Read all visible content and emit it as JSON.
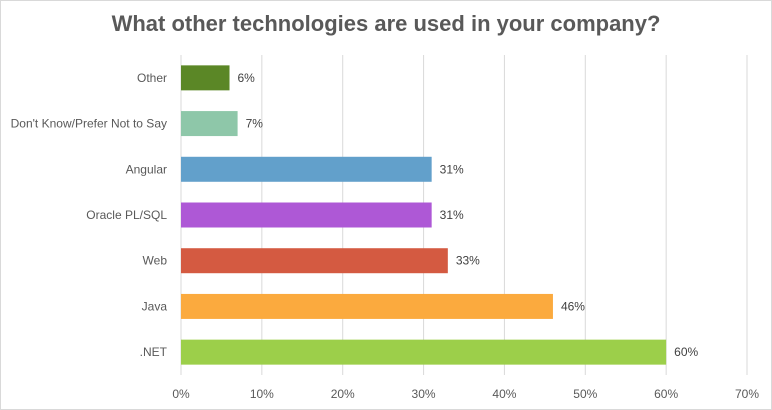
{
  "chart_data": {
    "type": "bar",
    "orientation": "horizontal",
    "title": "What other technologies are used in your company?",
    "categories": [
      "Other",
      "Don't Know/Prefer Not to Say",
      "Angular",
      "Oracle PL/SQL",
      "Web",
      "Java",
      ".NET"
    ],
    "values": [
      6,
      7,
      31,
      31,
      33,
      46,
      60
    ],
    "value_labels": [
      "6%",
      "7%",
      "31%",
      "31%",
      "33%",
      "46%",
      "60%"
    ],
    "colors": [
      "#5b8726",
      "#8ec7a9",
      "#62a0cb",
      "#ae58d6",
      "#d45a41",
      "#fbaa3e",
      "#9ccf4a"
    ],
    "xlim": [
      0,
      70
    ],
    "xticks": [
      0,
      10,
      20,
      30,
      40,
      50,
      60,
      70
    ],
    "xtick_labels": [
      "0%",
      "10%",
      "20%",
      "30%",
      "40%",
      "50%",
      "60%",
      "70%"
    ],
    "grid": true,
    "legend": "none"
  }
}
